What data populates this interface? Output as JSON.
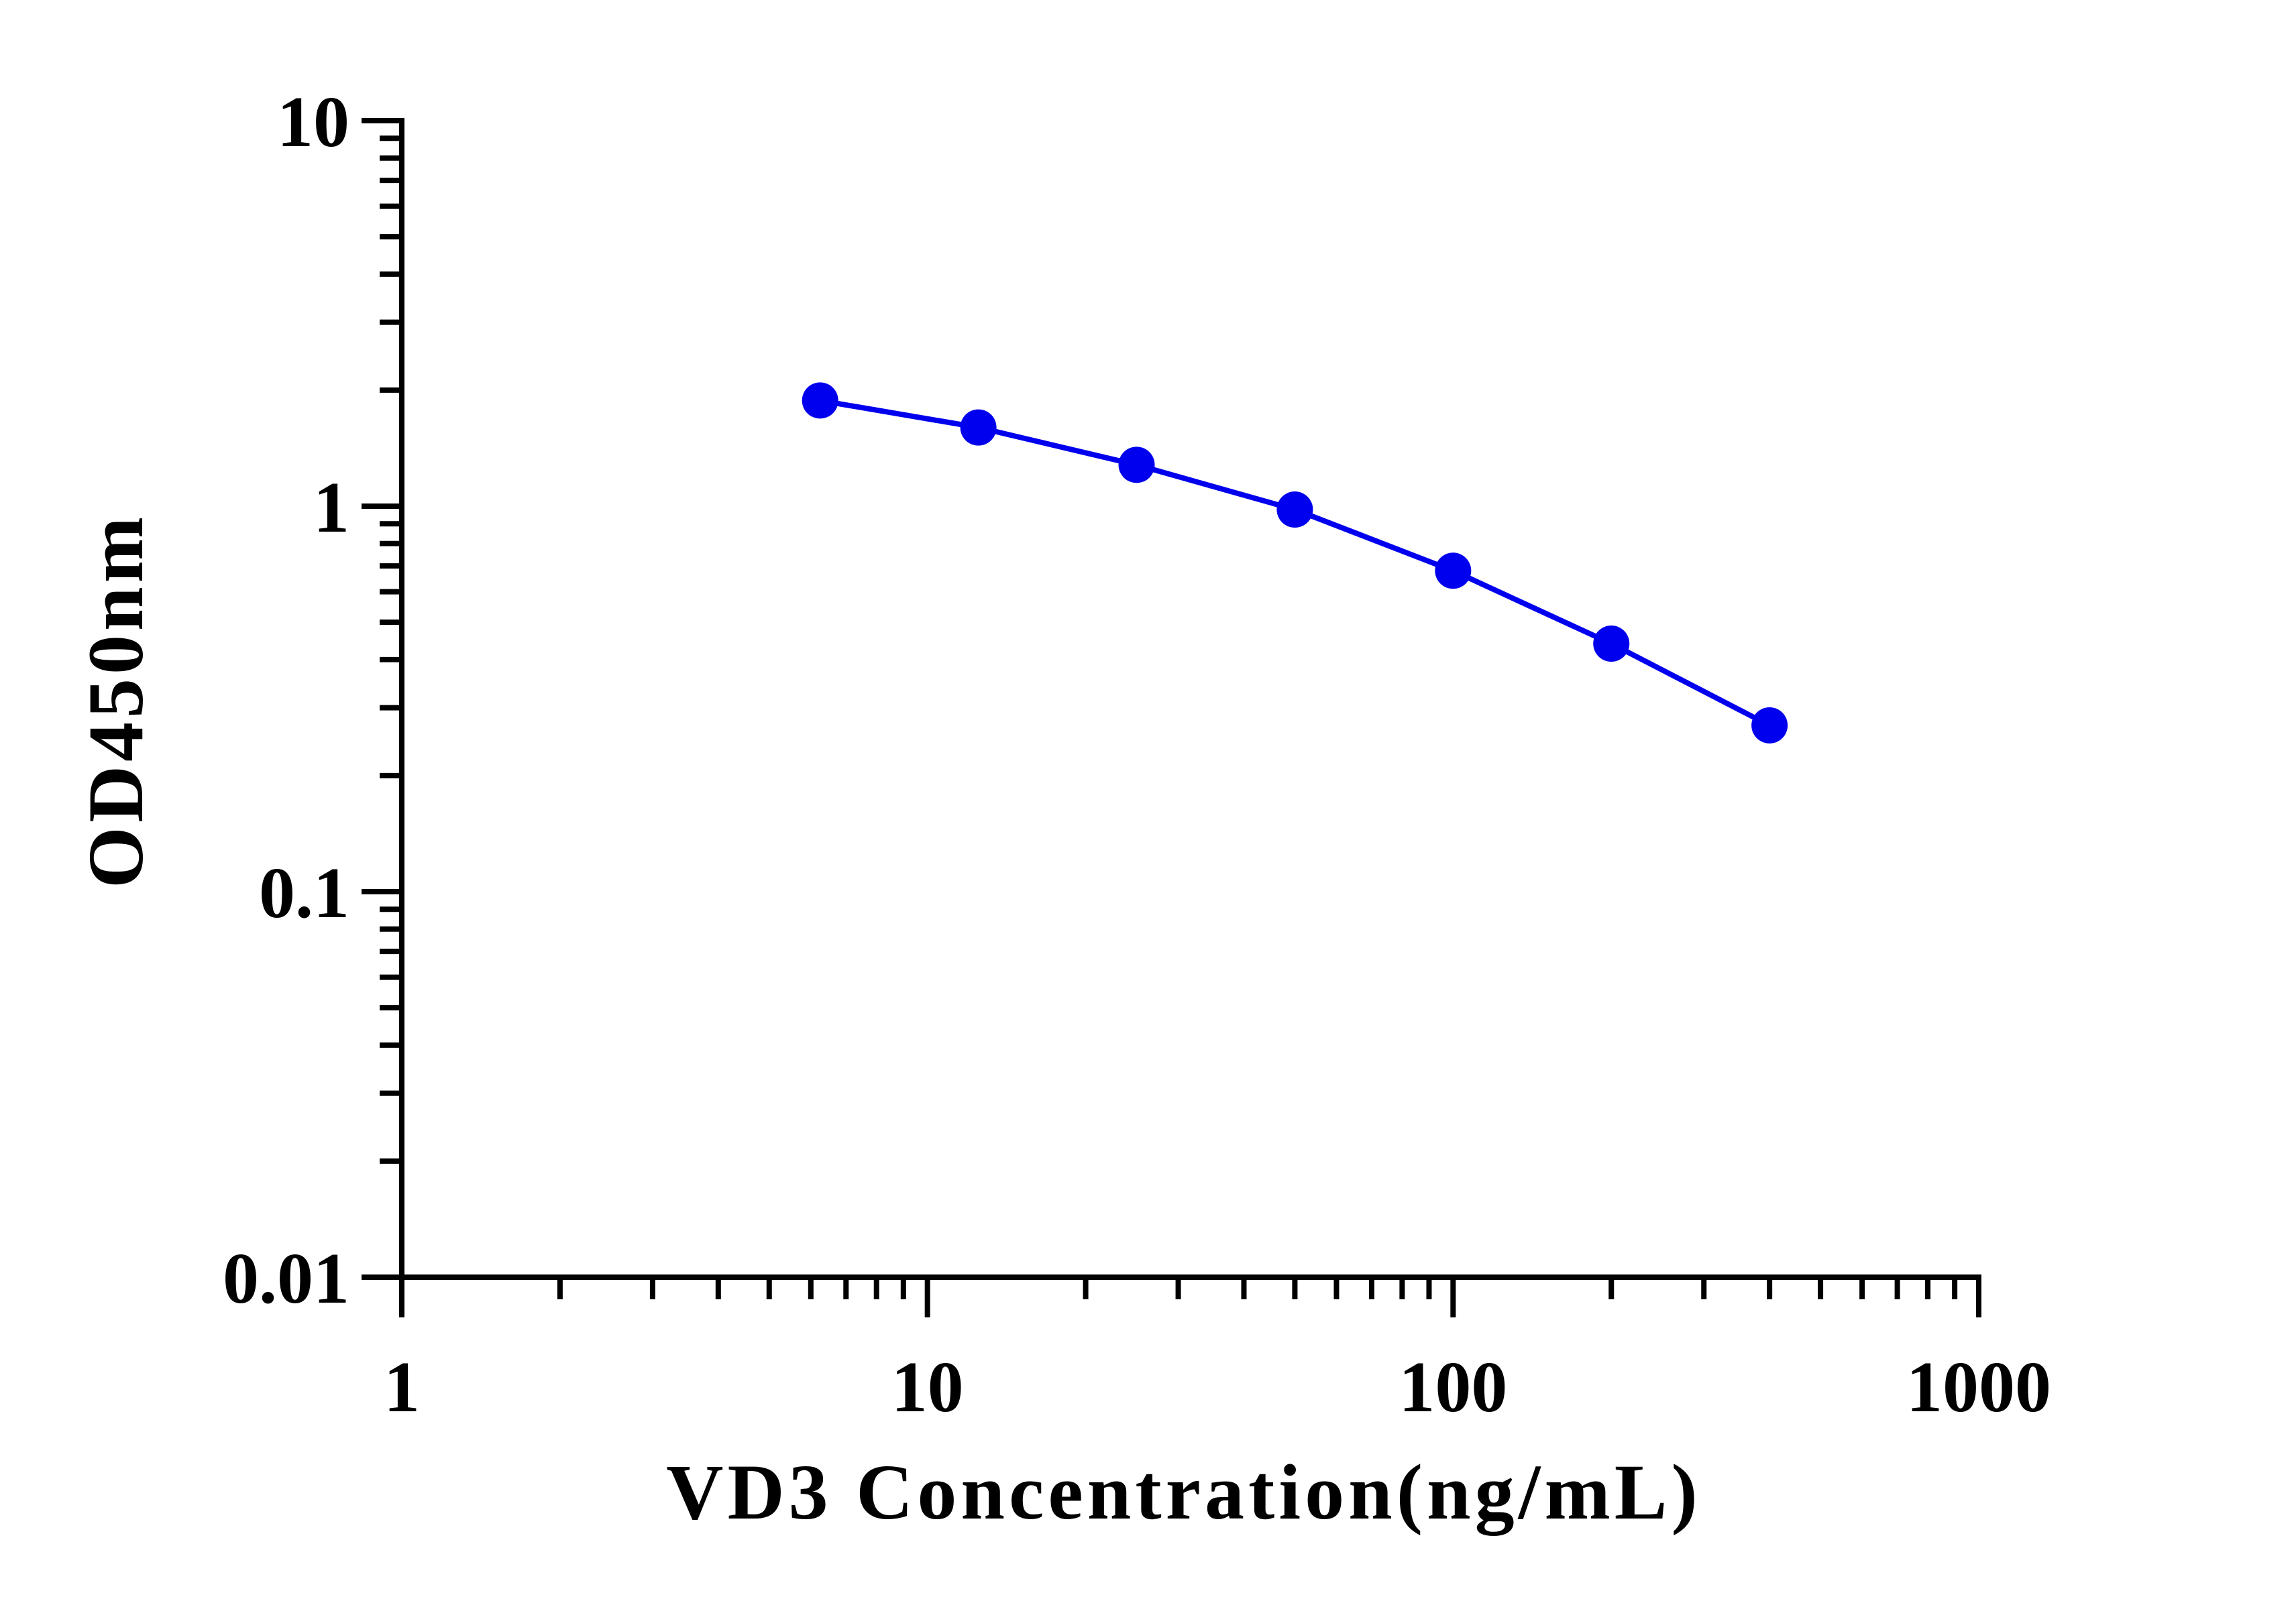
{
  "chart_data": {
    "type": "line",
    "title": "",
    "xlabel": "VD3 Concentration(ng/mL)",
    "ylabel": "OD450nm",
    "xscale": "log",
    "yscale": "log",
    "xlim": [
      1,
      1000
    ],
    "ylim": [
      0.01,
      10
    ],
    "x_ticks": [
      {
        "value": 1,
        "label": "1"
      },
      {
        "value": 10,
        "label": "10"
      },
      {
        "value": 100,
        "label": "100"
      },
      {
        "value": 1000,
        "label": "1000"
      }
    ],
    "y_ticks": [
      {
        "value": 0.01,
        "label": "0.01"
      },
      {
        "value": 0.1,
        "label": "0.1"
      },
      {
        "value": 1,
        "label": "1"
      },
      {
        "value": 10,
        "label": "10"
      }
    ],
    "grid": false,
    "legend": "none",
    "series": [
      {
        "color": "#0000ee",
        "marker": "circle",
        "x": [
          6.25,
          12.5,
          25,
          50,
          100,
          200,
          400
        ],
        "y": [
          1.88,
          1.6,
          1.28,
          0.98,
          0.68,
          0.44,
          0.27
        ]
      }
    ]
  }
}
